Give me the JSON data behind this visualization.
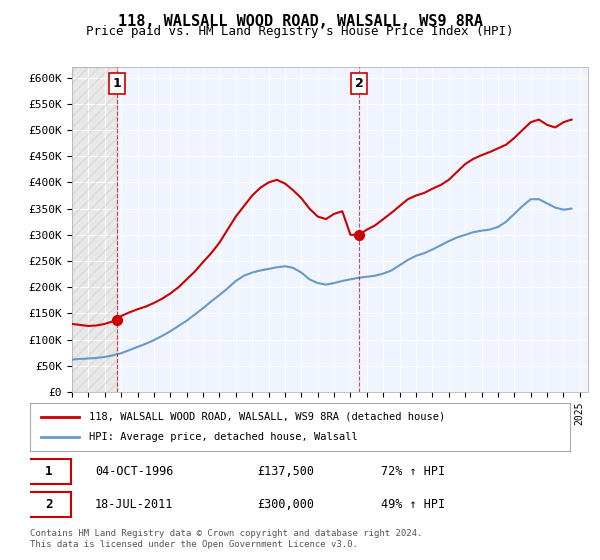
{
  "title": "118, WALSALL WOOD ROAD, WALSALL, WS9 8RA",
  "subtitle": "Price paid vs. HM Land Registry's House Price Index (HPI)",
  "ylabel": "",
  "ylim": [
    0,
    620000
  ],
  "yticks": [
    0,
    50000,
    100000,
    150000,
    200000,
    250000,
    300000,
    350000,
    400000,
    450000,
    500000,
    550000,
    600000
  ],
  "ytick_labels": [
    "£0",
    "£50K",
    "£100K",
    "£150K",
    "£200K",
    "£250K",
    "£300K",
    "£350K",
    "£400K",
    "£450K",
    "£500K",
    "£550K",
    "£600K"
  ],
  "xlim_start": 1994.0,
  "xlim_end": 2025.5,
  "xticks": [
    1994,
    1995,
    1996,
    1997,
    1998,
    1999,
    2000,
    2001,
    2002,
    2003,
    2004,
    2005,
    2006,
    2007,
    2008,
    2009,
    2010,
    2011,
    2012,
    2013,
    2014,
    2015,
    2016,
    2017,
    2018,
    2019,
    2020,
    2021,
    2022,
    2023,
    2024,
    2025
  ],
  "background_color": "#ffffff",
  "plot_bg_color": "#f0f4ff",
  "grid_color": "#ffffff",
  "red_line_color": "#cc0000",
  "blue_line_color": "#6699cc",
  "marker1_x": 1996.75,
  "marker1_y": 137500,
  "marker2_x": 2011.54,
  "marker2_y": 300000,
  "transaction1_date": "04-OCT-1996",
  "transaction1_price": "£137,500",
  "transaction1_hpi": "72% ↑ HPI",
  "transaction2_date": "18-JUL-2011",
  "transaction2_price": "£300,000",
  "transaction2_hpi": "49% ↑ HPI",
  "legend_line1": "118, WALSALL WOOD ROAD, WALSALL, WS9 8RA (detached house)",
  "legend_line2": "HPI: Average price, detached house, Walsall",
  "footer": "Contains HM Land Registry data © Crown copyright and database right 2024.\nThis data is licensed under the Open Government Licence v3.0.",
  "red_x": [
    1994.0,
    1994.5,
    1995.0,
    1995.5,
    1996.0,
    1996.5,
    1996.75,
    1997.0,
    1997.5,
    1998.0,
    1998.5,
    1999.0,
    1999.5,
    2000.0,
    2000.5,
    2001.0,
    2001.5,
    2002.0,
    2002.5,
    2003.0,
    2003.5,
    2004.0,
    2004.5,
    2005.0,
    2005.5,
    2006.0,
    2006.5,
    2007.0,
    2007.5,
    2008.0,
    2008.5,
    2009.0,
    2009.5,
    2010.0,
    2010.5,
    2011.0,
    2011.54,
    2012.0,
    2012.5,
    2013.0,
    2013.5,
    2014.0,
    2014.5,
    2015.0,
    2015.5,
    2016.0,
    2016.5,
    2017.0,
    2017.5,
    2018.0,
    2018.5,
    2019.0,
    2019.5,
    2020.0,
    2020.5,
    2021.0,
    2021.5,
    2022.0,
    2022.5,
    2023.0,
    2023.5,
    2024.0,
    2024.5
  ],
  "red_y": [
    130000,
    128000,
    126000,
    127000,
    130000,
    135000,
    137500,
    145000,
    152000,
    158000,
    163000,
    170000,
    178000,
    188000,
    200000,
    215000,
    230000,
    248000,
    265000,
    285000,
    310000,
    335000,
    355000,
    375000,
    390000,
    400000,
    405000,
    398000,
    385000,
    370000,
    350000,
    335000,
    330000,
    340000,
    345000,
    300000,
    300000,
    310000,
    318000,
    330000,
    342000,
    355000,
    368000,
    375000,
    380000,
    388000,
    395000,
    405000,
    420000,
    435000,
    445000,
    452000,
    458000,
    465000,
    472000,
    485000,
    500000,
    515000,
    520000,
    510000,
    505000,
    515000,
    520000
  ],
  "blue_x": [
    1994.0,
    1994.5,
    1995.0,
    1995.5,
    1996.0,
    1996.5,
    1997.0,
    1997.5,
    1998.0,
    1998.5,
    1999.0,
    1999.5,
    2000.0,
    2000.5,
    2001.0,
    2001.5,
    2002.0,
    2002.5,
    2003.0,
    2003.5,
    2004.0,
    2004.5,
    2005.0,
    2005.5,
    2006.0,
    2006.5,
    2007.0,
    2007.5,
    2008.0,
    2008.5,
    2009.0,
    2009.5,
    2010.0,
    2010.5,
    2011.0,
    2011.5,
    2012.0,
    2012.5,
    2013.0,
    2013.5,
    2014.0,
    2014.5,
    2015.0,
    2015.5,
    2016.0,
    2016.5,
    2017.0,
    2017.5,
    2018.0,
    2018.5,
    2019.0,
    2019.5,
    2020.0,
    2020.5,
    2021.0,
    2021.5,
    2022.0,
    2022.5,
    2023.0,
    2023.5,
    2024.0,
    2024.5
  ],
  "blue_y": [
    62000,
    63000,
    64000,
    65000,
    67000,
    70000,
    74000,
    80000,
    86000,
    92000,
    99000,
    107000,
    116000,
    126000,
    136000,
    148000,
    160000,
    173000,
    185000,
    198000,
    212000,
    222000,
    228000,
    232000,
    235000,
    238000,
    240000,
    237000,
    228000,
    215000,
    208000,
    205000,
    208000,
    212000,
    215000,
    218000,
    220000,
    222000,
    226000,
    232000,
    242000,
    252000,
    260000,
    265000,
    272000,
    280000,
    288000,
    295000,
    300000,
    305000,
    308000,
    310000,
    315000,
    325000,
    340000,
    355000,
    368000,
    368000,
    360000,
    352000,
    348000,
    350000
  ]
}
